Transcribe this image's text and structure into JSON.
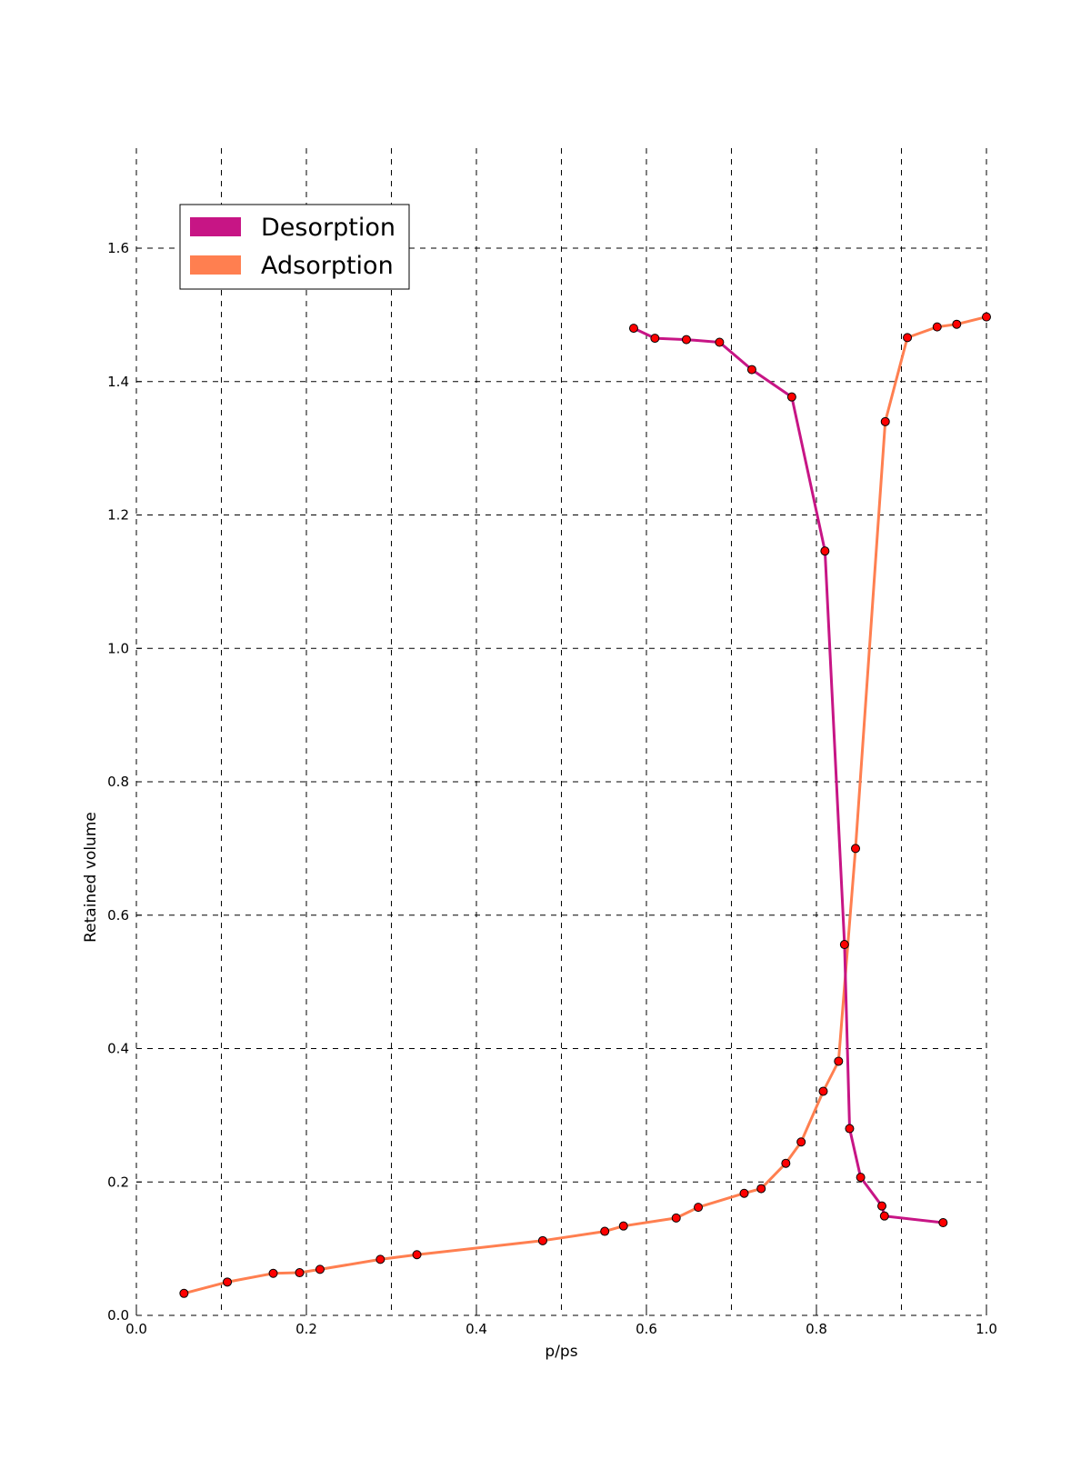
{
  "chart_data": {
    "type": "line",
    "title": "",
    "xlabel": "p/ps",
    "ylabel": "Retained volume",
    "xlim": [
      0.0,
      1.0
    ],
    "ylim": [
      0.0,
      1.75
    ],
    "xticks": [
      0.0,
      0.2,
      0.4,
      0.6,
      0.8,
      1.0
    ],
    "xtick_labels": [
      "0.0",
      "0.2",
      "0.4",
      "0.6",
      "0.8",
      "1.0"
    ],
    "yticks": [
      0.0,
      0.2,
      0.4,
      0.6,
      0.8,
      1.0,
      1.2,
      1.4,
      1.6
    ],
    "ytick_labels": [
      "0.0",
      "0.2",
      "0.4",
      "0.6",
      "0.8",
      "1.0",
      "1.2",
      "1.4",
      "1.6"
    ],
    "grid": true,
    "grid_x_step": 0.1,
    "grid_y_step": 0.2,
    "legend_position": "top-left",
    "marker_color": "#ff0000",
    "series": [
      {
        "name": "Desorption",
        "color": "#c71585",
        "x": [
          0.585,
          0.61,
          0.647,
          0.686,
          0.724,
          0.771,
          0.81,
          0.833,
          0.839,
          0.852,
          0.877,
          0.88,
          0.949
        ],
        "y": [
          1.48,
          1.465,
          1.463,
          1.459,
          1.418,
          1.377,
          1.146,
          0.556,
          0.28,
          0.207,
          0.164,
          0.149,
          0.139
        ]
      },
      {
        "name": "Adsorption",
        "color": "#ff7f50",
        "x": [
          0.056,
          0.107,
          0.161,
          0.192,
          0.216,
          0.287,
          0.33,
          0.478,
          0.551,
          0.573,
          0.635,
          0.661,
          0.715,
          0.735,
          0.764,
          0.782,
          0.808,
          0.826,
          0.846,
          0.881,
          0.907,
          0.942,
          0.965,
          1.0
        ],
        "y": [
          0.033,
          0.05,
          0.063,
          0.064,
          0.069,
          0.084,
          0.091,
          0.112,
          0.126,
          0.134,
          0.146,
          0.162,
          0.183,
          0.19,
          0.228,
          0.26,
          0.336,
          0.381,
          0.7,
          1.34,
          1.466,
          1.482,
          1.486,
          1.497
        ]
      }
    ]
  }
}
